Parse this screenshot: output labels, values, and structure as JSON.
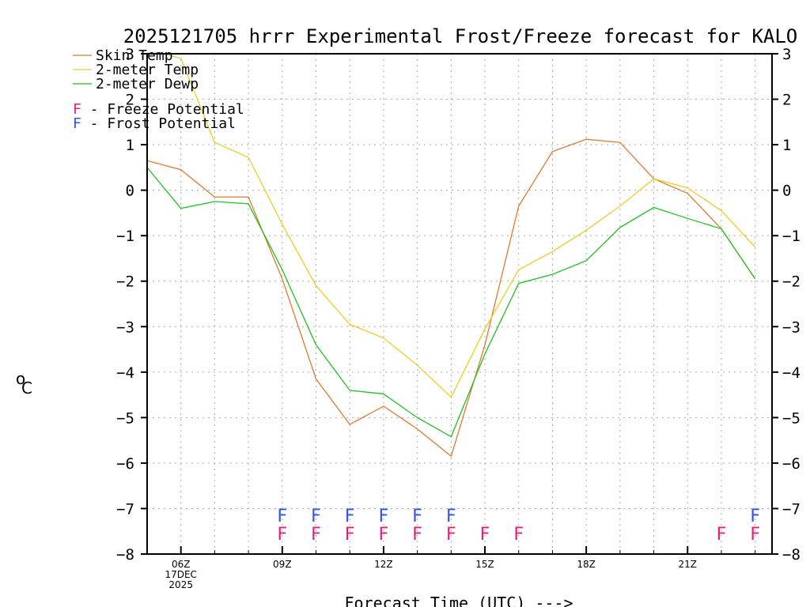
{
  "chart_data": {
    "type": "line",
    "title": "2025121705 hrrr Experimental Frost/Freeze forecast for KALO",
    "xlabel": "Forecast Time (UTC) --->",
    "ylabel_prefix": "o",
    "ylabel_main": "C",
    "ylim": [
      -8,
      3
    ],
    "yticks": [
      3,
      2,
      1,
      0,
      -1,
      -2,
      -3,
      -4,
      -5,
      -6,
      -7,
      -8
    ],
    "ytick_labels": [
      "3",
      "2",
      "1",
      "0",
      "−1",
      "−2",
      "−3",
      "−4",
      "−5",
      "−6",
      "−7",
      "−8"
    ],
    "xlim": [
      5,
      23.5
    ],
    "x": [
      5,
      6,
      7,
      8,
      9,
      10,
      11,
      12,
      13,
      14,
      15,
      16,
      17,
      18,
      19,
      20,
      21,
      22,
      23
    ],
    "xticks": [
      {
        "x": 6,
        "lines": [
          "06Z",
          "17DEC",
          "2025"
        ]
      },
      {
        "x": 9,
        "lines": [
          "09Z"
        ]
      },
      {
        "x": 12,
        "lines": [
          "12Z"
        ]
      },
      {
        "x": 15,
        "lines": [
          "15Z"
        ]
      },
      {
        "x": 18,
        "lines": [
          "18Z"
        ]
      },
      {
        "x": 21,
        "lines": [
          "21Z"
        ]
      }
    ],
    "series": [
      {
        "name": "Skin Temp",
        "color": "#e07a2f",
        "values": [
          0.65,
          0.45,
          -0.15,
          -0.15,
          -1.95,
          -4.15,
          -5.15,
          -4.75,
          -5.25,
          -5.85,
          -3.4,
          -0.35,
          0.85,
          1.12,
          1.05,
          0.25,
          -0.07,
          -0.85,
          -1.95
        ]
      },
      {
        "name": "2-meter Temp",
        "color": "#eecd22",
        "values": [
          3.1,
          2.9,
          1.05,
          0.72,
          -0.75,
          -2.1,
          -2.95,
          -3.25,
          -3.85,
          -4.55,
          -3.05,
          -1.75,
          -1.35,
          -0.88,
          -0.35,
          0.25,
          0.05,
          -0.45,
          -1.25
        ]
      },
      {
        "name": "2-meter Dewp",
        "color": "#1fc41f",
        "values": [
          0.5,
          -0.4,
          -0.25,
          -0.3,
          -1.75,
          -3.4,
          -4.4,
          -4.48,
          -5.0,
          -5.42,
          -3.6,
          -2.05,
          -1.85,
          -1.55,
          -0.82,
          -0.38,
          -0.62,
          -0.85,
          -1.95
        ]
      }
    ],
    "legend": {
      "position": "top-left",
      "series_labels": [
        "Skin Temp",
        "2-meter Temp",
        "2-meter Dewp"
      ],
      "freeze_symbol": "F",
      "freeze_text": " - Freeze Potential",
      "frost_symbol": "F",
      "frost_text": " - Frost Potential"
    },
    "flags": {
      "freeze": {
        "label": "F",
        "color": "#e0207a",
        "level": -7.55,
        "x": [
          9,
          10,
          11,
          12,
          13,
          14,
          15,
          16,
          22,
          23
        ]
      },
      "frost": {
        "label": "F",
        "color": "#3355e0",
        "level": -7.15,
        "x": [
          9,
          10,
          11,
          12,
          13,
          14,
          23
        ]
      }
    },
    "grid": true
  }
}
